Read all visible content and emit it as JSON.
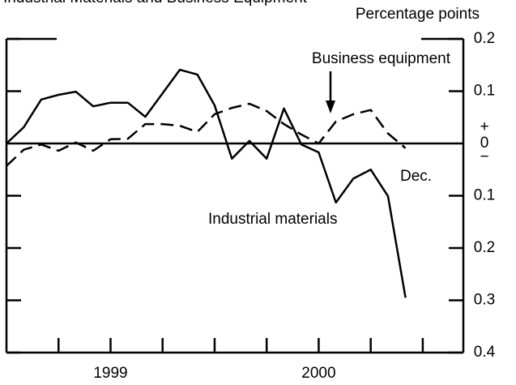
{
  "chart_data": {
    "type": "line",
    "title": "Industrial Materials and Business Equipment",
    "y_axis_label": "Percentage points",
    "x": [
      1999.0,
      1999.083,
      1999.167,
      1999.25,
      1999.333,
      1999.417,
      1999.5,
      1999.583,
      1999.667,
      1999.75,
      1999.833,
      1999.917,
      2000.0,
      2000.083,
      2000.167,
      2000.25,
      2000.333,
      2000.417,
      2000.5,
      2000.583,
      2000.667,
      2000.75,
      2000.833,
      2000.917
    ],
    "series": [
      {
        "name": "Industrial materials",
        "color": "#000000",
        "dash": "solid",
        "values": [
          0.0,
          0.031,
          0.084,
          0.093,
          0.099,
          0.071,
          0.078,
          0.078,
          0.051,
          0.096,
          0.141,
          0.132,
          0.073,
          -0.029,
          0.005,
          -0.029,
          0.067,
          -0.002,
          -0.017,
          -0.113,
          -0.067,
          -0.05,
          -0.101,
          -0.295
        ]
      },
      {
        "name": "Business equipment",
        "color": "#000000",
        "dash": "dashed",
        "values": [
          -0.043,
          -0.012,
          -0.002,
          -0.014,
          0.002,
          -0.014,
          0.008,
          0.009,
          0.037,
          0.037,
          0.034,
          0.022,
          0.056,
          0.068,
          0.076,
          0.062,
          0.037,
          0.017,
          0.0,
          0.042,
          0.056,
          0.064,
          0.019,
          -0.009
        ]
      }
    ],
    "annotations": [
      "Dec."
    ],
    "sign_labels": [
      "+",
      "−"
    ],
    "xlim": [
      1999.0,
      2001.195
    ],
    "xticks": [
      1999.25,
      1999.5,
      1999.75,
      2000.0,
      2000.25,
      2000.5,
      2000.75,
      2001.0
    ],
    "xtick_labels": [
      {
        "value": 1999.5,
        "label": "1999"
      },
      {
        "value": 2000.5,
        "label": "2000"
      }
    ],
    "ylim": [
      -0.4,
      0.2
    ],
    "yticks": [
      0.2,
      0.1,
      0,
      {
        "value": -0.1,
        "label": "0.1"
      },
      {
        "value": -0.2,
        "label": "0.2"
      },
      {
        "value": -0.3,
        "label": "0.3"
      },
      {
        "value": -0.4,
        "label": "0.4"
      }
    ]
  }
}
